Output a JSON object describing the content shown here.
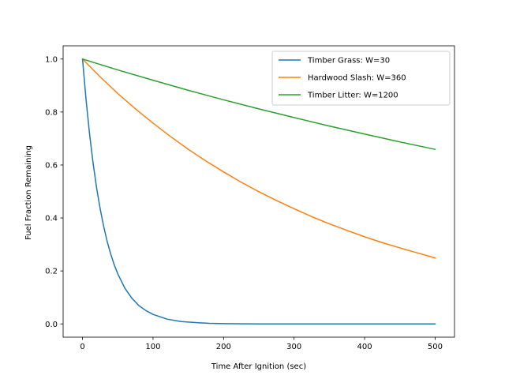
{
  "chart_data": {
    "type": "line",
    "title": "",
    "xlabel": "Time After Ignition (sec)",
    "ylabel": "Fuel Fraction Remaining",
    "xlim": [
      -27.5,
      527.5
    ],
    "ylim": [
      -0.05,
      1.05
    ],
    "xticks": [
      0,
      100,
      200,
      300,
      400,
      500
    ],
    "yticks": [
      0.0,
      0.2,
      0.4,
      0.6,
      0.8,
      1.0
    ],
    "xtick_labels": [
      "0",
      "100",
      "200",
      "300",
      "400",
      "500"
    ],
    "ytick_labels": [
      "0.0",
      "0.2",
      "0.4",
      "0.6",
      "0.8",
      "1.0"
    ],
    "grid": false,
    "legend_position": "top-right",
    "series": [
      {
        "name": "Timber Grass: W=30",
        "color": "#1f77b4",
        "x": [
          0,
          5,
          10,
          15,
          20,
          25,
          30,
          35,
          40,
          45,
          50,
          60,
          70,
          80,
          90,
          100,
          120,
          140,
          160,
          180,
          200,
          250,
          300,
          350,
          400,
          450,
          500
        ],
        "y": [
          1.0,
          0.847,
          0.717,
          0.607,
          0.513,
          0.435,
          0.368,
          0.311,
          0.264,
          0.223,
          0.189,
          0.135,
          0.097,
          0.069,
          0.05,
          0.036,
          0.018,
          0.009,
          0.005,
          0.002,
          0.001,
          0.0,
          0.0,
          0.0,
          0.0,
          0.0,
          0.0
        ]
      },
      {
        "name": "Hardwood Slash: W=360",
        "color": "#ff7f0e",
        "x": [
          0,
          25,
          50,
          75,
          100,
          125,
          150,
          175,
          200,
          225,
          250,
          275,
          300,
          325,
          350,
          375,
          400,
          425,
          450,
          475,
          500
        ],
        "y": [
          1.0,
          0.933,
          0.87,
          0.812,
          0.758,
          0.707,
          0.659,
          0.615,
          0.574,
          0.535,
          0.499,
          0.466,
          0.435,
          0.405,
          0.378,
          0.353,
          0.329,
          0.307,
          0.287,
          0.268,
          0.249
        ]
      },
      {
        "name": "Timber Litter: W=1200",
        "color": "#2ca02c",
        "x": [
          0,
          50,
          100,
          150,
          200,
          250,
          300,
          350,
          400,
          450,
          500
        ],
        "y": [
          1.0,
          0.959,
          0.92,
          0.882,
          0.846,
          0.812,
          0.779,
          0.747,
          0.717,
          0.687,
          0.659
        ]
      }
    ]
  }
}
